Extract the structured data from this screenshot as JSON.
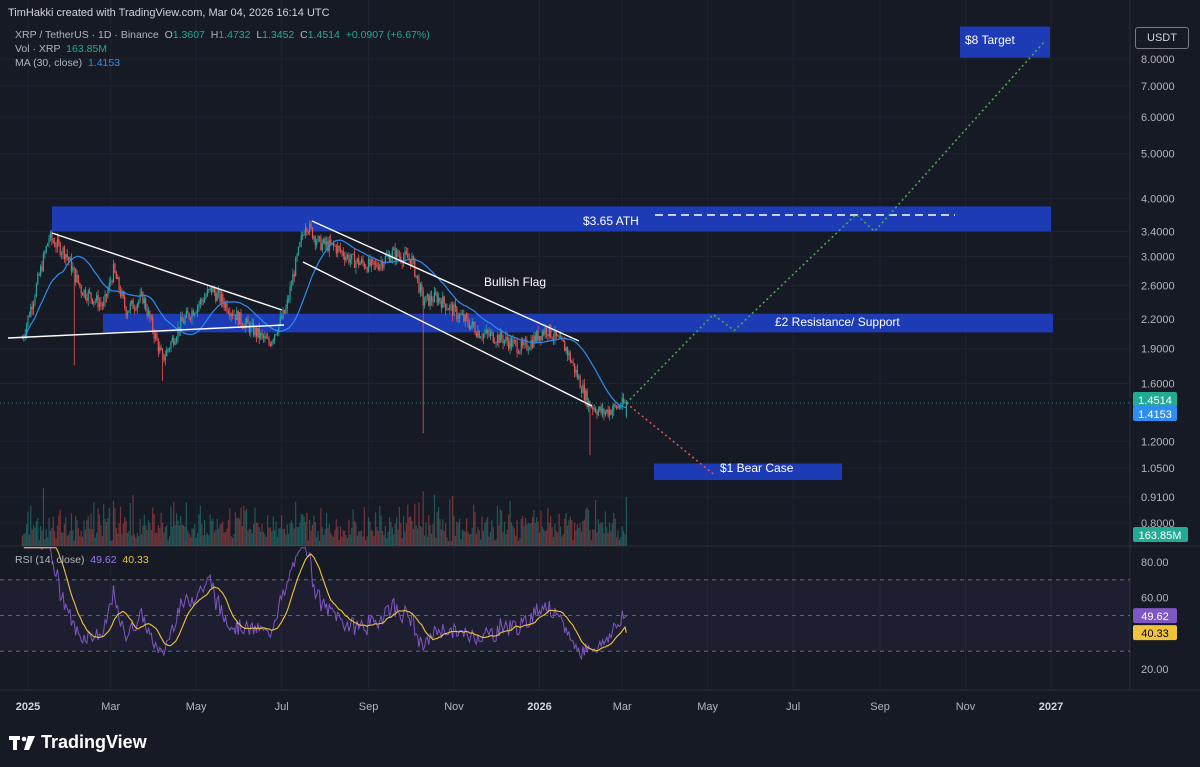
{
  "header": {
    "credit": "TimHakki created with TradingView.com, Mar 04, 2026 16:14 UTC"
  },
  "legend": {
    "symbol": "XRP / TetherUS · 1D · Binance",
    "o_label": "O",
    "o": "1.3607",
    "h_label": "H",
    "h": "1.4732",
    "l_label": "L",
    "l": "1.3452",
    "c_label": "C",
    "c": "1.4514",
    "change": "+0.0907 (+6.67%)",
    "vol_label": "Vol · XRP",
    "vol": "163.85M",
    "ma_label": "MA (30, close)",
    "ma": "1.4153"
  },
  "rsi_legend": {
    "label": "RSI (14, close)",
    "rsi": "49.62",
    "ma": "40.33"
  },
  "currency_button": "USDT",
  "footer": {
    "brand": "TradingView"
  },
  "colors": {
    "bg": "#161a25",
    "up": "#26a69a",
    "down": "#ef5350",
    "ma": "#2f8cf0",
    "zone": "#1e40c8",
    "rsi": "#7e57c2",
    "rsi_ma": "#f0c33c"
  },
  "chart_data": [
    {
      "type": "candlestick",
      "title": "XRP / TetherUS · 1D · Binance",
      "scale": "log",
      "x_ticks": [
        "2025",
        "Mar",
        "May",
        "Jul",
        "Sep",
        "Nov",
        "2026",
        "Mar",
        "May",
        "Jul",
        "Sep",
        "Nov",
        "2027"
      ],
      "y_ticks": [
        "8.0000",
        "7.0000",
        "6.0000",
        "5.0000",
        "4.0000",
        "3.4000",
        "3.0000",
        "2.6000",
        "2.2000",
        "1.9000",
        "1.6000",
        "1.2000",
        "1.0500",
        "0.9100",
        "0.8000"
      ],
      "price_labels": {
        "last": "1.4514",
        "ma": "1.4153",
        "volume": "163.85M"
      },
      "price_path": [
        [
          "2024-12-28",
          2.0
        ],
        [
          "2025-01-05",
          2.45
        ],
        [
          "2025-01-16",
          3.3
        ],
        [
          "2025-01-28",
          3.05
        ],
        [
          "2025-02-08",
          2.55
        ],
        [
          "2025-02-24",
          2.35
        ],
        [
          "2025-03-03",
          2.8
        ],
        [
          "2025-03-12",
          2.3
        ],
        [
          "2025-03-24",
          2.45
        ],
        [
          "2025-04-07",
          1.8
        ],
        [
          "2025-04-20",
          2.15
        ],
        [
          "2025-05-12",
          2.55
        ],
        [
          "2025-06-01",
          2.2
        ],
        [
          "2025-06-22",
          1.95
        ],
        [
          "2025-07-04",
          2.3
        ],
        [
          "2025-07-10",
          2.8
        ],
        [
          "2025-07-18",
          3.55
        ],
        [
          "2025-07-28",
          3.2
        ],
        [
          "2025-08-08",
          3.15
        ],
        [
          "2025-08-20",
          2.95
        ],
        [
          "2025-09-05",
          2.85
        ],
        [
          "2025-09-18",
          3.05
        ],
        [
          "2025-10-02",
          2.95
        ],
        [
          "2025-10-10",
          2.4
        ],
        [
          "2025-10-20",
          2.45
        ],
        [
          "2025-11-04",
          2.25
        ],
        [
          "2025-11-20",
          2.05
        ],
        [
          "2025-12-05",
          2.0
        ],
        [
          "2025-12-20",
          1.9
        ],
        [
          "2026-01-06",
          2.1
        ],
        [
          "2026-01-20",
          1.9
        ],
        [
          "2026-02-05",
          1.45
        ],
        [
          "2026-02-15",
          1.38
        ],
        [
          "2026-03-04",
          1.4514
        ]
      ],
      "ma_label": "MA (30, close)",
      "zones": [
        {
          "label": "$3.65 ATH",
          "from": 3.4,
          "to": 3.85
        },
        {
          "label": "£2 Resistance/ Support",
          "from": 2.06,
          "to": 2.26
        },
        {
          "label": "$1 Bear Case",
          "from": 0.99,
          "to": 1.075
        },
        {
          "label": "$8 Target",
          "from": 8.05,
          "to": 9.4
        }
      ],
      "annotations": [
        "Bullish Flag",
        "$3.65 ATH",
        "£2 Resistance/ Support",
        "$1 Bear Case",
        "$8 Target"
      ],
      "projection_bull": [
        [
          "2026-03-04",
          1.45
        ],
        [
          "2026-05-05",
          2.25
        ],
        [
          "2026-05-20",
          2.08
        ],
        [
          "2026-08-15",
          3.7
        ],
        [
          "2026-08-28",
          3.4
        ],
        [
          "2026-12-25",
          8.7
        ]
      ],
      "projection_bear": [
        [
          "2026-03-04",
          1.45
        ],
        [
          "2026-05-05",
          1.02
        ]
      ]
    },
    {
      "type": "line",
      "title": "RSI (14, close)",
      "y_ticks": [
        "80.00",
        "60.00",
        "20.00"
      ],
      "levels": [
        70,
        50,
        30
      ],
      "series": [
        {
          "name": "RSI",
          "last": 49.62
        },
        {
          "name": "MA",
          "last": 40.33
        }
      ]
    }
  ]
}
